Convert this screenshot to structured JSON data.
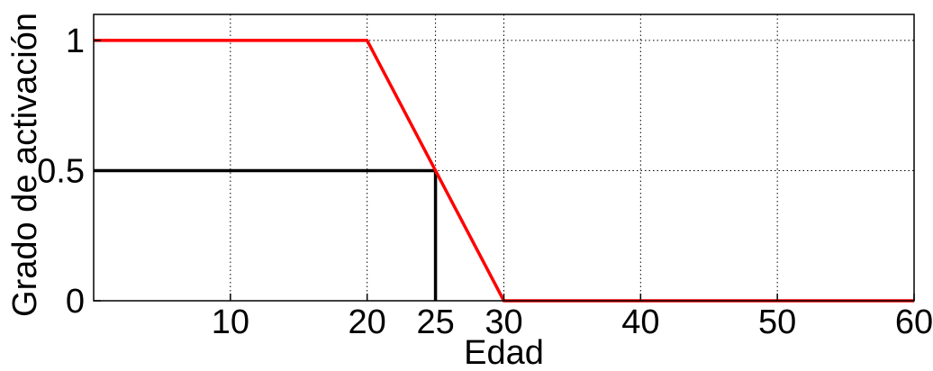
{
  "chart_data": {
    "type": "line",
    "title": "",
    "xlabel": "Edad",
    "ylabel": "Grado de activación",
    "xlim": [
      0,
      60
    ],
    "ylim": [
      0,
      1.1
    ],
    "grid": true,
    "x_ticks": [
      {
        "value": 10,
        "label": "10"
      },
      {
        "value": 20,
        "label": "20"
      },
      {
        "value": 25,
        "label": "25"
      },
      {
        "value": 30,
        "label": "30"
      },
      {
        "value": 40,
        "label": "40"
      },
      {
        "value": 50,
        "label": "50"
      },
      {
        "value": 60,
        "label": "60"
      }
    ],
    "y_ticks": [
      {
        "value": 0,
        "label": "0"
      },
      {
        "value": 0.5,
        "label": "0.5"
      },
      {
        "value": 1,
        "label": "1"
      }
    ],
    "series": [
      {
        "color": "#ff0000",
        "x": [
          0,
          20,
          30,
          60
        ],
        "y": [
          1,
          1,
          0,
          0
        ]
      }
    ],
    "annotation_lines": [
      {
        "color": "#000000",
        "x": [
          0,
          25
        ],
        "y": [
          0.5,
          0.5
        ]
      },
      {
        "color": "#000000",
        "x": [
          25,
          25
        ],
        "y": [
          0.5,
          0
        ]
      }
    ]
  }
}
